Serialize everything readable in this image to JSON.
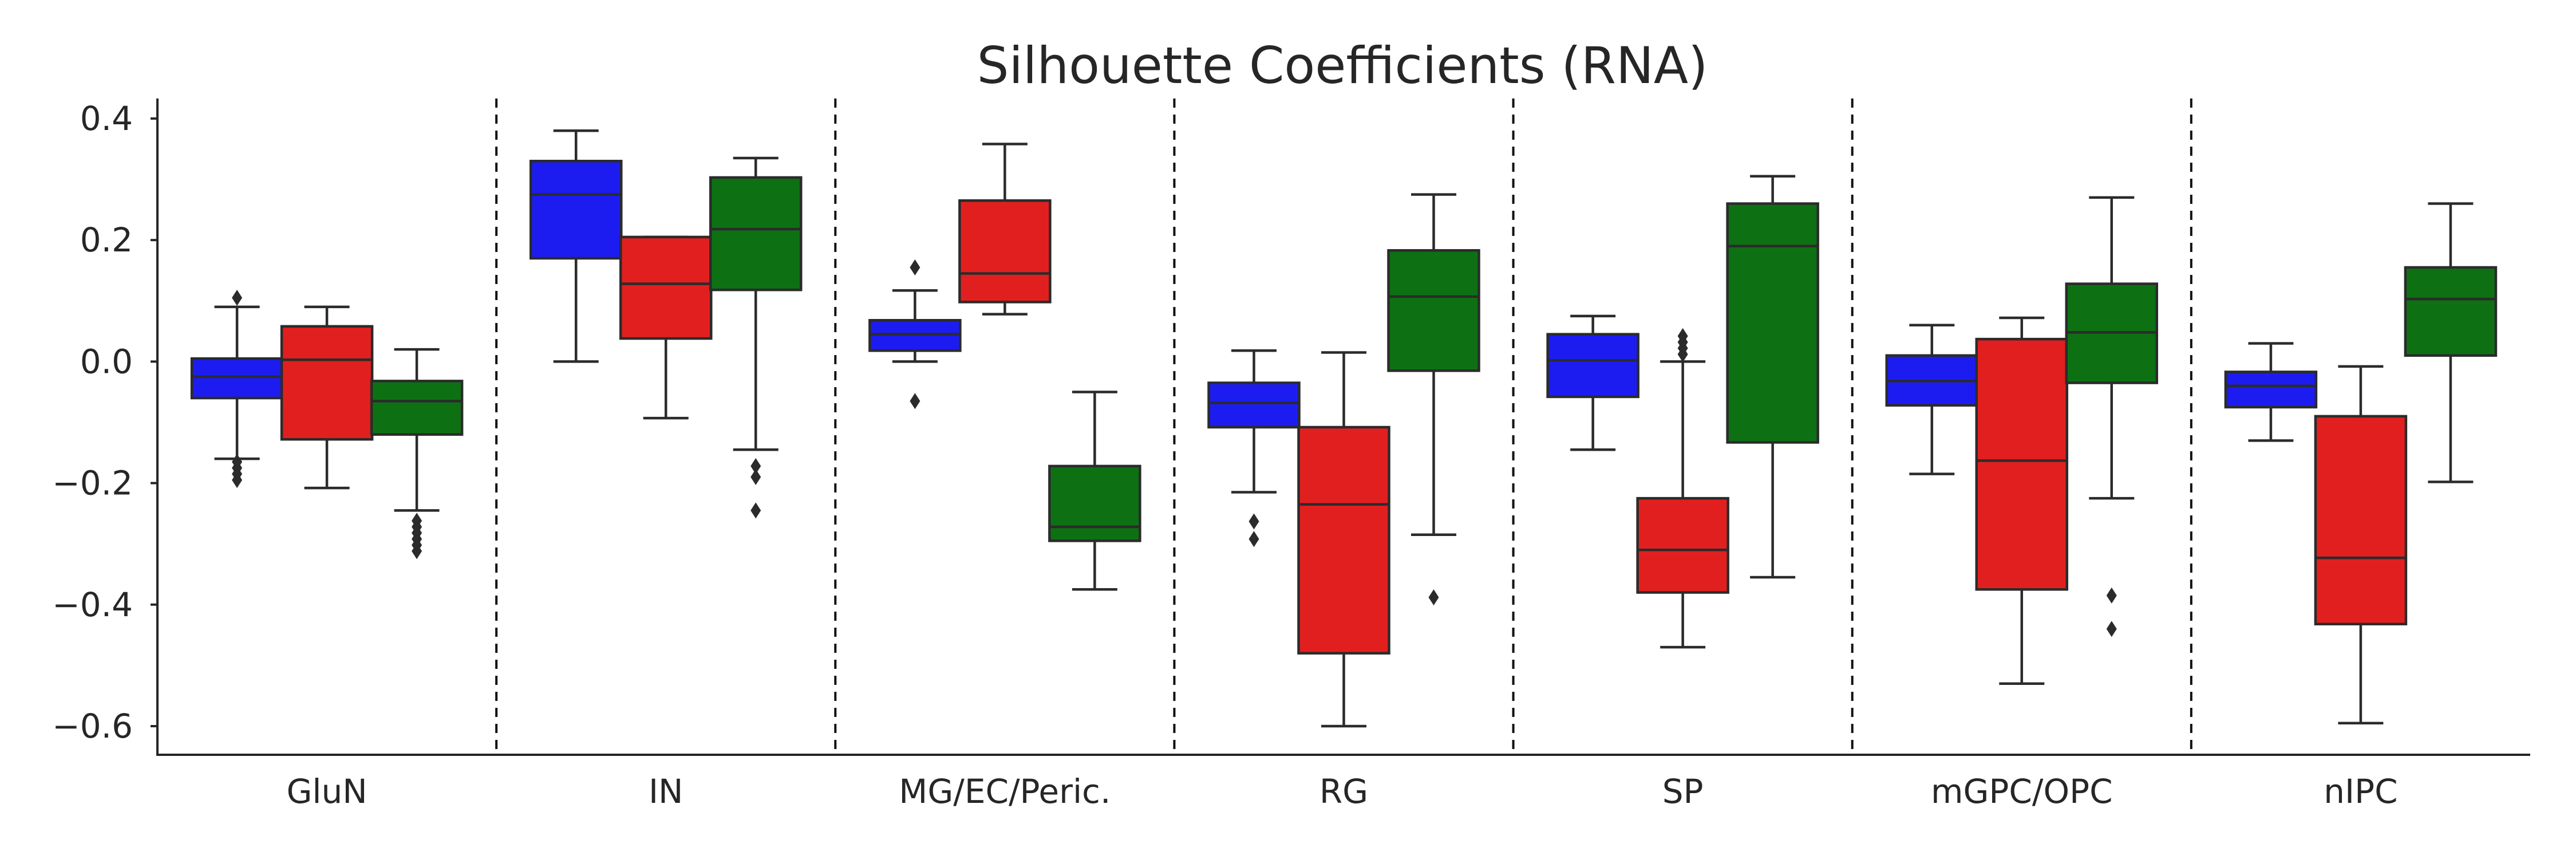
{
  "chart_data": {
    "type": "box",
    "title": "Silhouette Coefficients (RNA)",
    "xlabel": "",
    "ylabel": "",
    "ylim": [
      -0.65,
      0.43
    ],
    "yticks": [
      0.4,
      0.2,
      0.0,
      -0.2,
      -0.4,
      -0.6
    ],
    "ytick_labels": [
      "0.4",
      "0.2",
      "0.0",
      "−0.2",
      "−0.4",
      "−0.6"
    ],
    "categories": [
      "GluN",
      "IN",
      "MG/EC/Peric.",
      "RG",
      "SP",
      "mGPC/OPC",
      "nIPC"
    ],
    "grid": false,
    "legend": false,
    "separators": "dashed",
    "series": [
      {
        "color": "#1c1cf0",
        "boxes": [
          {
            "min": -0.16,
            "q1": -0.06,
            "median": -0.025,
            "q3": 0.005,
            "max": 0.09,
            "fliers": [
              0.105,
              -0.165,
              -0.175,
              -0.185,
              -0.195
            ]
          },
          {
            "min": 0.0,
            "q1": 0.17,
            "median": 0.275,
            "q3": 0.33,
            "max": 0.38,
            "fliers": []
          },
          {
            "min": 0.0,
            "q1": 0.018,
            "median": 0.045,
            "q3": 0.068,
            "max": 0.117,
            "fliers": [
              0.155,
              -0.065
            ]
          },
          {
            "min": -0.215,
            "q1": -0.108,
            "median": -0.068,
            "q3": -0.035,
            "max": 0.018,
            "fliers": [
              -0.263,
              -0.292
            ]
          },
          {
            "min": -0.145,
            "q1": -0.058,
            "median": 0.002,
            "q3": 0.045,
            "max": 0.075,
            "fliers": []
          },
          {
            "min": -0.185,
            "q1": -0.072,
            "median": -0.032,
            "q3": 0.01,
            "max": 0.06,
            "fliers": []
          },
          {
            "min": -0.13,
            "q1": -0.075,
            "median": -0.04,
            "q3": -0.017,
            "max": 0.03,
            "fliers": []
          }
        ]
      },
      {
        "color": "#e21f1f",
        "boxes": [
          {
            "min": -0.208,
            "q1": -0.128,
            "median": 0.003,
            "q3": 0.058,
            "max": 0.09,
            "fliers": []
          },
          {
            "min": -0.093,
            "q1": 0.038,
            "median": 0.128,
            "q3": 0.205,
            "max": 0.205,
            "fliers": []
          },
          {
            "min": 0.078,
            "q1": 0.098,
            "median": 0.145,
            "q3": 0.265,
            "max": 0.358,
            "fliers": []
          },
          {
            "min": -0.6,
            "q1": -0.48,
            "median": -0.235,
            "q3": -0.108,
            "max": 0.015,
            "fliers": []
          },
          {
            "min": -0.47,
            "q1": -0.38,
            "median": -0.31,
            "q3": -0.225,
            "max": 0.0,
            "fliers": [
              0.042,
              0.032,
              0.022,
              0.012
            ]
          },
          {
            "min": -0.53,
            "q1": -0.375,
            "median": -0.163,
            "q3": 0.037,
            "max": 0.072,
            "fliers": []
          },
          {
            "min": -0.595,
            "q1": -0.432,
            "median": -0.323,
            "q3": -0.09,
            "max": -0.008,
            "fliers": []
          }
        ]
      },
      {
        "color": "#0d7113",
        "boxes": [
          {
            "min": -0.245,
            "q1": -0.12,
            "median": -0.065,
            "q3": -0.032,
            "max": 0.02,
            "fliers": [
              -0.262,
              -0.272,
              -0.282,
              -0.292,
              -0.302,
              -0.312
            ]
          },
          {
            "min": -0.145,
            "q1": 0.118,
            "median": 0.218,
            "q3": 0.303,
            "max": 0.335,
            "fliers": [
              -0.172,
              -0.19,
              -0.245
            ]
          },
          {
            "min": -0.375,
            "q1": -0.295,
            "median": -0.272,
            "q3": -0.172,
            "max": -0.05,
            "fliers": []
          },
          {
            "min": -0.285,
            "q1": -0.015,
            "median": 0.107,
            "q3": 0.183,
            "max": 0.275,
            "fliers": [
              -0.388
            ]
          },
          {
            "min": -0.355,
            "q1": -0.133,
            "median": 0.19,
            "q3": 0.26,
            "max": 0.305,
            "fliers": []
          },
          {
            "min": -0.225,
            "q1": -0.035,
            "median": 0.048,
            "q3": 0.128,
            "max": 0.27,
            "fliers": [
              -0.385,
              -0.44
            ]
          },
          {
            "min": -0.198,
            "q1": 0.01,
            "median": 0.103,
            "q3": 0.155,
            "max": 0.26,
            "fliers": []
          }
        ]
      }
    ]
  }
}
